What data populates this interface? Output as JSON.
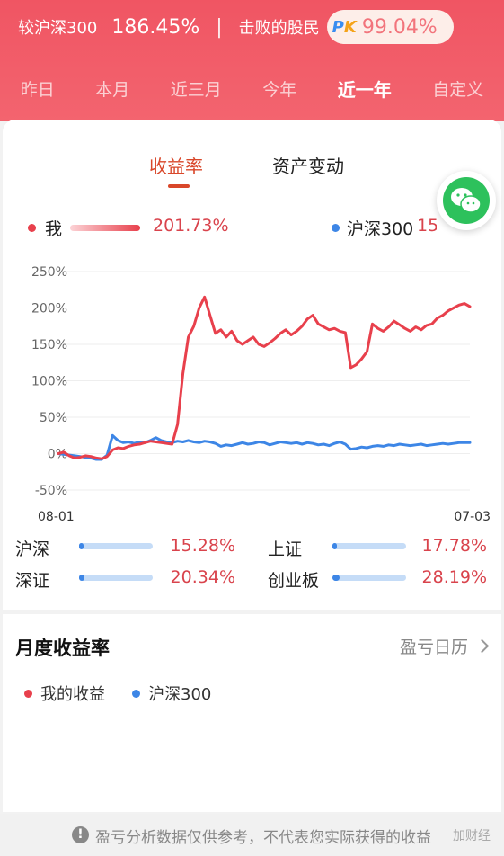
{
  "header": {
    "compare_label": "较沪深300",
    "compare_value": "186.45%",
    "separator": "|",
    "beat_label": "击败的股民",
    "pk_badge_p": "P",
    "pk_badge_k": "K",
    "beat_value": "99.04%",
    "periods": [
      "昨日",
      "本月",
      "近三月",
      "今年",
      "近一年",
      "自定义"
    ],
    "active_period": "近一年"
  },
  "tabs": [
    "收益率",
    "资产变动"
  ],
  "active_tab": "收益率",
  "legend": {
    "me_label": "我",
    "me_value": "201.73%",
    "index_label": "沪深300",
    "index_value": "15.28%"
  },
  "colors": {
    "me": "#e8404c",
    "index": "#3d86e6",
    "header": "#f05563",
    "accent": "#d9472a"
  },
  "chart_data": {
    "type": "line",
    "ylabel": "",
    "xlabel": "",
    "y_ticks": [
      "250%",
      "200%",
      "150%",
      "100%",
      "50%",
      "0%",
      "-50%"
    ],
    "ylim": [
      -50,
      250
    ],
    "x_ticks": [
      "08-01",
      "07-03"
    ],
    "grid": true,
    "series": [
      {
        "name": "我",
        "color": "#e8404c",
        "values": [
          0,
          2,
          -3,
          -6,
          -5,
          -3,
          -4,
          -6,
          -7,
          -4,
          5,
          8,
          7,
          10,
          12,
          13,
          15,
          17,
          16,
          15,
          14,
          13,
          40,
          110,
          160,
          175,
          200,
          215,
          190,
          165,
          170,
          160,
          168,
          155,
          150,
          155,
          160,
          150,
          147,
          152,
          158,
          165,
          170,
          163,
          168,
          175,
          185,
          190,
          178,
          174,
          170,
          172,
          168,
          166,
          118,
          122,
          130,
          140,
          178,
          172,
          168,
          174,
          182,
          177,
          172,
          168,
          174,
          170,
          176,
          178,
          186,
          190,
          196,
          200,
          204,
          206,
          202
        ]
      },
      {
        "name": "沪深300",
        "color": "#3d86e6",
        "values": [
          0,
          -1,
          -2,
          -3,
          -4,
          -5,
          -6,
          -8,
          -8,
          -2,
          25,
          18,
          15,
          16,
          14,
          16,
          15,
          18,
          22,
          18,
          16,
          15,
          17,
          16,
          18,
          16,
          15,
          17,
          16,
          14,
          10,
          12,
          11,
          13,
          15,
          13,
          14,
          16,
          15,
          12,
          14,
          16,
          15,
          14,
          15,
          13,
          15,
          14,
          12,
          13,
          11,
          14,
          16,
          13,
          6,
          7,
          9,
          8,
          10,
          11,
          10,
          12,
          11,
          13,
          12,
          11,
          12,
          13,
          11,
          12,
          13,
          14,
          13,
          14,
          15,
          15,
          15
        ]
      }
    ]
  },
  "indices": [
    {
      "name": "沪深",
      "value": "15.28%",
      "fill": 0.06
    },
    {
      "name": "上证",
      "value": "17.78%",
      "fill": 0.06
    },
    {
      "name": "深证",
      "value": "20.34%",
      "fill": 0.07
    },
    {
      "name": "创业板",
      "value": "28.19%",
      "fill": 0.1
    }
  ],
  "monthly": {
    "title": "月度收益率",
    "calendar_link": "盈亏日历",
    "legend_me": "我的收益",
    "legend_index": "沪深300"
  },
  "footer": {
    "disclaimer": "盈亏分析数据仅供参考，不代表您实际获得的收益",
    "watermark": "加财经"
  }
}
